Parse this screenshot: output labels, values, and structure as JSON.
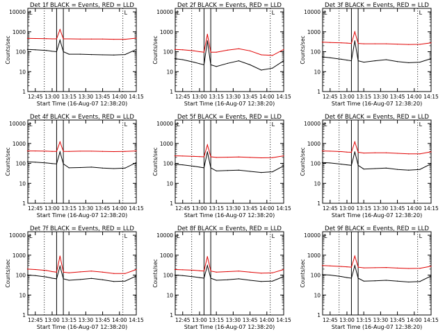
{
  "figure": {
    "xlabel": "Start Time (16-Aug-07 12:38:20)",
    "ylabel": "Counts/sec",
    "flag_label": "L"
  },
  "colors": {
    "events": "#000000",
    "lld": "#e00000",
    "axes": "#000000"
  },
  "chart_data": [
    {
      "type": "line",
      "title": "Det 1f BLACK = Events, RED = LLD",
      "xlabel": "Start Time (16-Aug-07 12:38:20)",
      "ylabel": "Counts/sec",
      "x_ticks": [
        "12:45",
        "13:00",
        "13:15",
        "13:30",
        "13:45",
        "14:00",
        "14:15"
      ],
      "y_ticks": [
        "1",
        "10",
        "100",
        "1000",
        "10000"
      ],
      "xlim": [
        "12:38:20",
        "14:15"
      ],
      "ylim": [
        1,
        15000
      ],
      "y_scale": "log",
      "dotted_lines": [
        "12:53",
        "14:03"
      ],
      "box_interval": [
        "13:04",
        "13:10"
      ],
      "series": [
        {
          "name": "Events",
          "color": "#000000",
          "x": [
            "12:38",
            "12:45",
            "12:55",
            "13:00",
            "13:04",
            "13:07",
            "13:10",
            "13:15",
            "13:25",
            "13:35",
            "13:45",
            "13:55",
            "14:05",
            "14:15"
          ],
          "values": [
            130,
            125,
            115,
            105,
            100,
            380,
            100,
            75,
            75,
            72,
            70,
            68,
            72,
            130
          ]
        },
        {
          "name": "LLD",
          "color": "#e00000",
          "x": [
            "12:38",
            "12:45",
            "12:55",
            "13:00",
            "13:04",
            "13:07",
            "13:10",
            "13:15",
            "13:25",
            "13:35",
            "13:45",
            "13:55",
            "14:05",
            "14:15"
          ],
          "values": [
            470,
            460,
            450,
            440,
            440,
            1300,
            440,
            440,
            430,
            430,
            430,
            420,
            420,
            480
          ]
        }
      ]
    },
    {
      "type": "line",
      "title": "Det 2f BLACK = Events, RED = LLD",
      "xlabel": "Start Time (16-Aug-07 12:38:20)",
      "ylabel": "Counts/sec",
      "x_ticks": [
        "12:45",
        "13:00",
        "13:15",
        "13:30",
        "13:45",
        "14:00",
        "14:15"
      ],
      "y_ticks": [
        "1",
        "10",
        "100",
        "1000",
        "10000"
      ],
      "xlim": [
        "12:38:20",
        "14:15"
      ],
      "ylim": [
        1,
        15000
      ],
      "y_scale": "log",
      "dotted_lines": [
        "12:53",
        "14:03"
      ],
      "box_interval": [
        "13:04",
        "13:10"
      ],
      "series": [
        {
          "name": "Events",
          "color": "#000000",
          "x": [
            "12:38",
            "12:45",
            "12:55",
            "13:00",
            "13:04",
            "13:07",
            "13:10",
            "13:15",
            "13:25",
            "13:35",
            "13:45",
            "13:55",
            "14:05",
            "14:15"
          ],
          "values": [
            45,
            40,
            30,
            25,
            22,
            350,
            22,
            18,
            26,
            35,
            22,
            12,
            15,
            35
          ]
        },
        {
          "name": "LLD",
          "color": "#e00000",
          "x": [
            "12:38",
            "12:45",
            "12:55",
            "13:00",
            "13:04",
            "13:07",
            "13:10",
            "13:15",
            "13:25",
            "13:35",
            "13:45",
            "13:55",
            "14:05",
            "14:15"
          ],
          "values": [
            130,
            125,
            110,
            100,
            95,
            750,
            95,
            95,
            120,
            140,
            110,
            70,
            65,
            130
          ]
        }
      ]
    },
    {
      "type": "line",
      "title": "Det 3f BLACK = Events, RED = LLD",
      "xlabel": "Start Time (16-Aug-07 12:38:20)",
      "ylabel": "Counts/sec",
      "x_ticks": [
        "12:45",
        "13:00",
        "13:15",
        "13:30",
        "13:45",
        "14:00",
        "14:15"
      ],
      "y_ticks": [
        "1",
        "10",
        "100",
        "1000",
        "10000"
      ],
      "xlim": [
        "12:38:20",
        "14:15"
      ],
      "ylim": [
        1,
        15000
      ],
      "y_scale": "log",
      "dotted_lines": [
        "12:53",
        "14:03"
      ],
      "box_interval": [
        "13:04",
        "13:10"
      ],
      "series": [
        {
          "name": "Events",
          "color": "#000000",
          "x": [
            "12:38",
            "12:45",
            "12:55",
            "13:00",
            "13:04",
            "13:07",
            "13:10",
            "13:15",
            "13:25",
            "13:35",
            "13:45",
            "13:55",
            "14:05",
            "14:15"
          ],
          "values": [
            55,
            50,
            42,
            38,
            35,
            350,
            35,
            30,
            35,
            40,
            32,
            28,
            30,
            45
          ]
        },
        {
          "name": "LLD",
          "color": "#e00000",
          "x": [
            "12:38",
            "12:45",
            "12:55",
            "13:00",
            "13:04",
            "13:07",
            "13:10",
            "13:15",
            "13:25",
            "13:35",
            "13:45",
            "13:55",
            "14:05",
            "14:15"
          ],
          "values": [
            300,
            290,
            280,
            270,
            260,
            1000,
            260,
            250,
            250,
            250,
            240,
            230,
            235,
            280
          ]
        }
      ]
    },
    {
      "type": "line",
      "title": "Det 4f BLACK = Events, RED = LLD",
      "xlabel": "Start Time (16-Aug-07 12:38:20)",
      "ylabel": "Counts/sec",
      "x_ticks": [
        "12:45",
        "13:00",
        "13:15",
        "13:30",
        "13:45",
        "14:00",
        "14:15"
      ],
      "y_ticks": [
        "1",
        "10",
        "100",
        "1000",
        "10000"
      ],
      "xlim": [
        "12:38:20",
        "14:15"
      ],
      "ylim": [
        1,
        15000
      ],
      "y_scale": "log",
      "dotted_lines": [
        "12:53",
        "14:03"
      ],
      "box_interval": [
        "13:04",
        "13:10"
      ],
      "series": [
        {
          "name": "Events",
          "color": "#000000",
          "x": [
            "12:38",
            "12:45",
            "12:55",
            "13:00",
            "13:04",
            "13:07",
            "13:10",
            "13:15",
            "13:25",
            "13:35",
            "13:45",
            "13:55",
            "14:05",
            "14:15"
          ],
          "values": [
            120,
            115,
            105,
            98,
            95,
            380,
            95,
            60,
            62,
            65,
            58,
            55,
            58,
            110
          ]
        },
        {
          "name": "LLD",
          "color": "#e00000",
          "x": [
            "12:38",
            "12:45",
            "12:55",
            "13:00",
            "13:04",
            "13:07",
            "13:10",
            "13:15",
            "13:25",
            "13:35",
            "13:45",
            "13:55",
            "14:05",
            "14:15"
          ],
          "values": [
            420,
            420,
            410,
            400,
            400,
            1200,
            400,
            400,
            410,
            410,
            400,
            390,
            400,
            420
          ]
        }
      ]
    },
    {
      "type": "line",
      "title": "Det 5f BLACK = Events, RED = LLD",
      "xlabel": "Start Time (16-Aug-07 12:38:20)",
      "ylabel": "Counts/sec",
      "x_ticks": [
        "12:45",
        "13:00",
        "13:15",
        "13:30",
        "13:45",
        "14:00",
        "14:15"
      ],
      "y_ticks": [
        "1",
        "10",
        "100",
        "1000",
        "10000"
      ],
      "xlim": [
        "12:38:20",
        "14:15"
      ],
      "ylim": [
        1,
        15000
      ],
      "y_scale": "log",
      "dotted_lines": [
        "12:53",
        "14:03"
      ],
      "box_interval": [
        "13:04",
        "13:10"
      ],
      "series": [
        {
          "name": "Events",
          "color": "#000000",
          "x": [
            "12:38",
            "12:45",
            "12:55",
            "13:00",
            "13:04",
            "13:07",
            "13:10",
            "13:15",
            "13:25",
            "13:35",
            "13:45",
            "13:55",
            "14:05",
            "14:15"
          ],
          "values": [
            90,
            85,
            72,
            65,
            60,
            380,
            60,
            42,
            44,
            46,
            40,
            35,
            38,
            75
          ]
        },
        {
          "name": "LLD",
          "color": "#e00000",
          "x": [
            "12:38",
            "12:45",
            "12:55",
            "13:00",
            "13:04",
            "13:07",
            "13:10",
            "13:15",
            "13:25",
            "13:35",
            "13:45",
            "13:55",
            "14:05",
            "14:15"
          ],
          "values": [
            240,
            235,
            225,
            220,
            215,
            850,
            215,
            200,
            205,
            210,
            200,
            190,
            195,
            240
          ]
        }
      ]
    },
    {
      "type": "line",
      "title": "Det 6f BLACK = Events, RED = LLD",
      "xlabel": "Start Time (16-Aug-07 12:38:20)",
      "ylabel": "Counts/sec",
      "x_ticks": [
        "12:45",
        "13:00",
        "13:15",
        "13:30",
        "13:45",
        "14:00",
        "14:15"
      ],
      "y_ticks": [
        "1",
        "10",
        "100",
        "1000",
        "10000"
      ],
      "xlim": [
        "12:38:20",
        "14:15"
      ],
      "ylim": [
        1,
        15000
      ],
      "y_scale": "log",
      "dotted_lines": [
        "12:53",
        "14:03"
      ],
      "box_interval": [
        "13:04",
        "13:10"
      ],
      "series": [
        {
          "name": "Events",
          "color": "#000000",
          "x": [
            "12:38",
            "12:45",
            "12:55",
            "13:00",
            "13:04",
            "13:07",
            "13:10",
            "13:15",
            "13:25",
            "13:35",
            "13:45",
            "13:55",
            "14:05",
            "14:15"
          ],
          "values": [
            110,
            105,
            92,
            85,
            80,
            380,
            80,
            52,
            55,
            58,
            50,
            46,
            50,
            95
          ]
        },
        {
          "name": "LLD",
          "color": "#e00000",
          "x": [
            "12:38",
            "12:45",
            "12:55",
            "13:00",
            "13:04",
            "13:07",
            "13:10",
            "13:15",
            "13:25",
            "13:35",
            "13:45",
            "13:55",
            "14:05",
            "14:15"
          ],
          "values": [
            420,
            410,
            390,
            370,
            360,
            1200,
            360,
            330,
            340,
            340,
            320,
            300,
            300,
            380
          ]
        }
      ]
    },
    {
      "type": "line",
      "title": "Det 7f BLACK = Events, RED = LLD",
      "xlabel": "Start Time (16-Aug-07 12:38:20)",
      "ylabel": "Counts/sec",
      "x_ticks": [
        "12:45",
        "13:00",
        "13:15",
        "13:30",
        "13:45",
        "14:00",
        "14:15"
      ],
      "y_ticks": [
        "1",
        "10",
        "100",
        "1000",
        "10000"
      ],
      "xlim": [
        "12:38:20",
        "14:15"
      ],
      "ylim": [
        1,
        15000
      ],
      "y_scale": "log",
      "dotted_lines": [
        "12:53",
        "14:03"
      ],
      "box_interval": [
        "13:04",
        "13:10"
      ],
      "series": [
        {
          "name": "Events",
          "color": "#000000",
          "x": [
            "12:38",
            "12:45",
            "12:55",
            "13:00",
            "13:04",
            "13:07",
            "13:10",
            "13:15",
            "13:25",
            "13:35",
            "13:45",
            "13:55",
            "14:05",
            "14:15"
          ],
          "values": [
            100,
            95,
            80,
            70,
            65,
            280,
            65,
            55,
            60,
            68,
            58,
            48,
            50,
            90
          ]
        },
        {
          "name": "LLD",
          "color": "#e00000",
          "x": [
            "12:38",
            "12:45",
            "12:55",
            "13:00",
            "13:04",
            "13:07",
            "13:10",
            "13:15",
            "13:25",
            "13:35",
            "13:45",
            "13:55",
            "14:05",
            "14:15"
          ],
          "values": [
            200,
            190,
            170,
            150,
            140,
            900,
            140,
            130,
            145,
            160,
            140,
            120,
            120,
            190
          ]
        }
      ]
    },
    {
      "type": "line",
      "title": "Det 8f BLACK = Events, RED = LLD",
      "xlabel": "Start Time (16-Aug-07 12:38:20)",
      "ylabel": "Counts/sec",
      "x_ticks": [
        "12:45",
        "13:00",
        "13:15",
        "13:30",
        "13:45",
        "14:00",
        "14:15"
      ],
      "y_ticks": [
        "1",
        "10",
        "100",
        "1000",
        "10000"
      ],
      "xlim": [
        "12:38:20",
        "14:15"
      ],
      "ylim": [
        1,
        15000
      ],
      "y_scale": "log",
      "dotted_lines": [
        "12:53",
        "14:03"
      ],
      "box_interval": [
        "13:04",
        "13:10"
      ],
      "series": [
        {
          "name": "Events",
          "color": "#000000",
          "x": [
            "12:38",
            "12:45",
            "12:55",
            "13:00",
            "13:04",
            "13:07",
            "13:10",
            "13:15",
            "13:25",
            "13:35",
            "13:45",
            "13:55",
            "14:05",
            "14:15"
          ],
          "values": [
            100,
            95,
            82,
            75,
            70,
            300,
            70,
            55,
            58,
            65,
            55,
            48,
            50,
            85
          ]
        },
        {
          "name": "LLD",
          "color": "#e00000",
          "x": [
            "12:38",
            "12:45",
            "12:55",
            "13:00",
            "13:04",
            "13:07",
            "13:10",
            "13:15",
            "13:25",
            "13:35",
            "13:45",
            "13:55",
            "14:05",
            "14:15"
          ],
          "values": [
            190,
            185,
            175,
            165,
            160,
            850,
            160,
            140,
            150,
            160,
            140,
            125,
            130,
            190
          ]
        }
      ]
    },
    {
      "type": "line",
      "title": "Det 9f BLACK = Events, RED = LLD",
      "xlabel": "Start Time (16-Aug-07 12:38:20)",
      "ylabel": "Counts/sec",
      "x_ticks": [
        "12:45",
        "13:00",
        "13:15",
        "13:30",
        "13:45",
        "14:00",
        "14:15"
      ],
      "y_ticks": [
        "1",
        "10",
        "100",
        "1000",
        "10000"
      ],
      "xlim": [
        "12:38:20",
        "14:15"
      ],
      "ylim": [
        1,
        15000
      ],
      "y_scale": "log",
      "dotted_lines": [
        "12:53",
        "14:03"
      ],
      "box_interval": [
        "13:04",
        "13:10"
      ],
      "series": [
        {
          "name": "Events",
          "color": "#000000",
          "x": [
            "12:38",
            "12:45",
            "12:55",
            "13:00",
            "13:04",
            "13:07",
            "13:10",
            "13:15",
            "13:25",
            "13:35",
            "13:45",
            "13:55",
            "14:05",
            "14:15"
          ],
          "values": [
            105,
            100,
            85,
            75,
            70,
            300,
            70,
            50,
            52,
            55,
            50,
            45,
            48,
            90
          ]
        },
        {
          "name": "LLD",
          "color": "#e00000",
          "x": [
            "12:38",
            "12:45",
            "12:55",
            "13:00",
            "13:04",
            "13:07",
            "13:10",
            "13:15",
            "13:25",
            "13:35",
            "13:45",
            "13:55",
            "14:05",
            "14:15"
          ],
          "values": [
            300,
            290,
            270,
            260,
            250,
            900,
            250,
            230,
            235,
            240,
            225,
            215,
            220,
            280
          ]
        }
      ]
    }
  ]
}
